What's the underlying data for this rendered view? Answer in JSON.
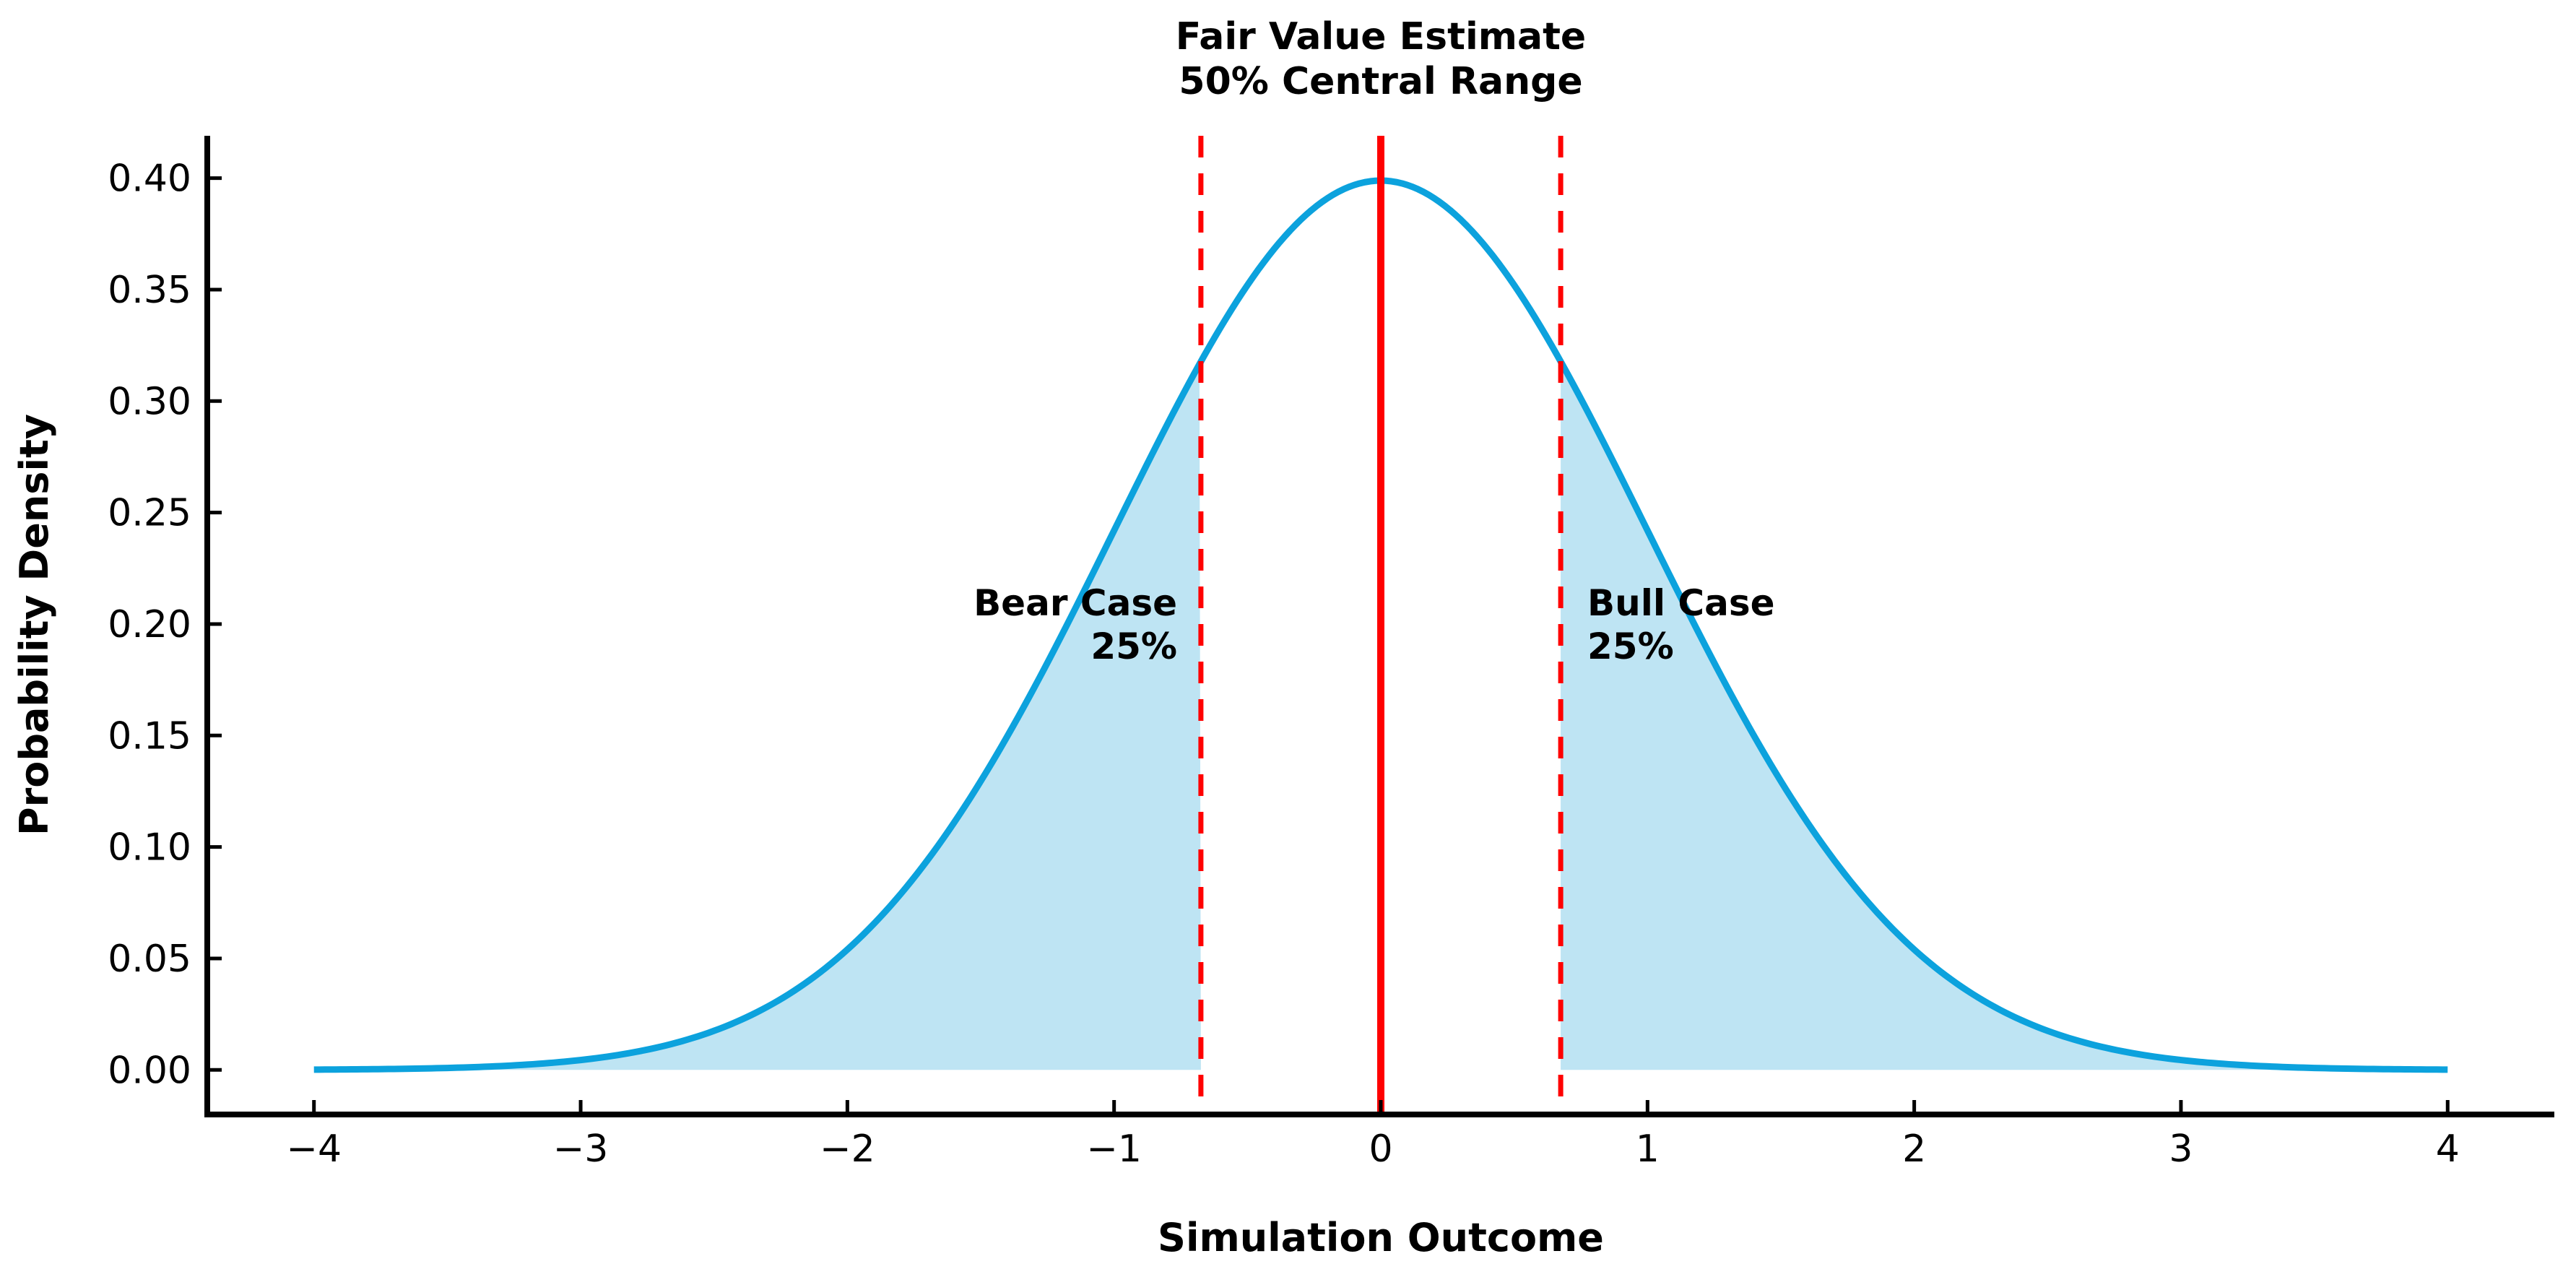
{
  "title": {
    "line1": "Fair Value Estimate",
    "line2": "50% Central Range"
  },
  "axes": {
    "xlabel": "Simulation Outcome",
    "ylabel": "Probability Density",
    "x_tick_values": [
      -4,
      -3,
      -2,
      -1,
      0,
      1,
      2,
      3,
      4
    ],
    "x_tick_labels": [
      "−4",
      "−3",
      "−2",
      "−1",
      "0",
      "1",
      "2",
      "3",
      "4"
    ],
    "y_tick_values": [
      0.0,
      0.05,
      0.1,
      0.15,
      0.2,
      0.25,
      0.3,
      0.35,
      0.4
    ],
    "y_tick_labels": [
      "0.00",
      "0.05",
      "0.10",
      "0.15",
      "0.20",
      "0.25",
      "0.30",
      "0.35",
      "0.40"
    ],
    "xlim": [
      -4.4,
      4.4
    ],
    "ylim": [
      -0.02,
      0.419
    ],
    "grid": false,
    "spines": [
      "left",
      "bottom"
    ],
    "tick_direction": "in"
  },
  "chart_data": {
    "type": "area",
    "subtype": "normal-distribution-pdf",
    "title": "Fair Value Estimate 50% Central Range",
    "xlabel": "Simulation Outcome",
    "ylabel": "Probability Density",
    "mean": 0,
    "std": 1,
    "peak_density": 0.3989,
    "x_range": [
      -4,
      4
    ],
    "center_line_x": 0,
    "quantile_lines_x": [
      -0.6745,
      0.6745
    ],
    "shaded_regions": [
      {
        "label": "Bear Case",
        "percent": "25%",
        "from": -4,
        "to": -0.6745
      },
      {
        "label": "Bull Case",
        "percent": "25%",
        "from": 0.6745,
        "to": 4
      }
    ],
    "sample_points": {
      "x": [
        -4,
        -3.5,
        -3,
        -2.5,
        -2,
        -1.5,
        -1,
        -0.5,
        0,
        0.5,
        1,
        1.5,
        2,
        2.5,
        3,
        3.5,
        4
      ],
      "density": [
        0.0001,
        0.0009,
        0.0044,
        0.0175,
        0.054,
        0.1295,
        0.242,
        0.3521,
        0.3989,
        0.3521,
        0.242,
        0.1295,
        0.054,
        0.0175,
        0.0044,
        0.0009,
        0.0001
      ]
    },
    "legend": "none"
  },
  "annotations": {
    "bear": {
      "line1": "Bear Case",
      "line2": "25%"
    },
    "bull": {
      "line1": "Bull Case",
      "line2": "25%"
    }
  },
  "colors": {
    "curve": "#0ca2dd",
    "tail_fill": "#bee4f3",
    "center_line": "#ff0000",
    "quantile_line": "#ff0000",
    "axis": "#000000",
    "text": "#000000",
    "background": "#ffffff"
  }
}
